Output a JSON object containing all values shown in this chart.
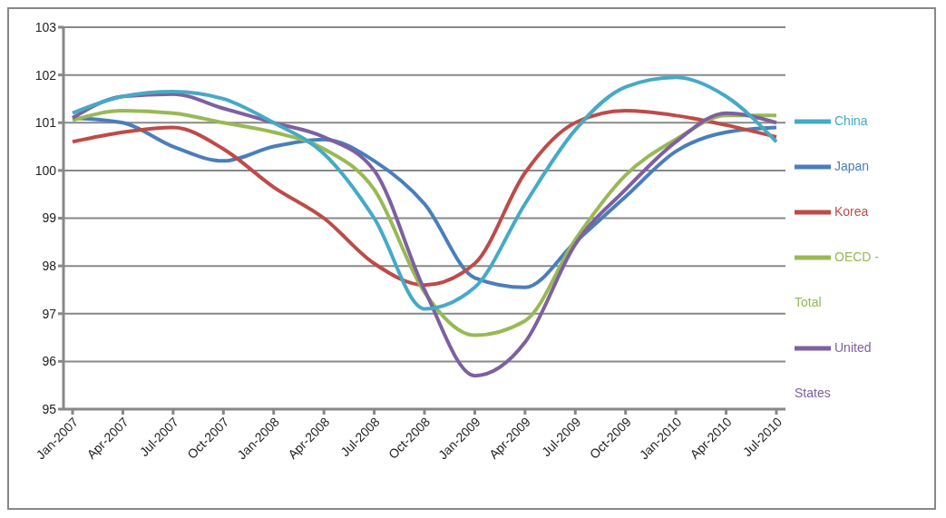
{
  "chart_data": {
    "type": "line",
    "categories": [
      "Jan-2007",
      "Apr-2007",
      "Jul-2007",
      "Oct-2007",
      "Jan-2008",
      "Apr-2008",
      "Jul-2008",
      "Oct-2008",
      "Jan-2009",
      "Apr-2009",
      "Jul-2009",
      "Oct-2009",
      "Jan-2010",
      "Apr-2010",
      "Jul-2010"
    ],
    "series": [
      {
        "name": "Japan",
        "color": "#4a7ebb",
        "values": [
          101.1,
          101.0,
          100.5,
          100.2,
          100.5,
          100.65,
          100.2,
          99.3,
          97.75,
          97.55,
          98.5,
          99.45,
          100.4,
          100.8,
          100.9
        ]
      },
      {
        "name": "Korea",
        "color": "#be4b48",
        "values": [
          100.6,
          100.8,
          100.9,
          100.45,
          99.65,
          99.0,
          98.05,
          97.6,
          98.05,
          99.95,
          101.0,
          101.25,
          101.15,
          100.95,
          100.7
        ]
      },
      {
        "name": "OECD - Total",
        "color": "#98b954",
        "values": [
          101.05,
          101.25,
          101.2,
          101.0,
          100.8,
          100.45,
          99.6,
          97.45,
          96.55,
          96.85,
          98.55,
          99.9,
          100.65,
          101.15,
          101.15
        ]
      },
      {
        "name": "United States",
        "color": "#7d60a0",
        "values": [
          101.1,
          101.55,
          101.6,
          101.3,
          101.0,
          100.7,
          100.0,
          97.5,
          95.7,
          96.4,
          98.45,
          99.6,
          100.6,
          101.2,
          101.0
        ]
      },
      {
        "name": "China",
        "color": "#46aac5",
        "values": [
          101.2,
          101.55,
          101.65,
          101.5,
          101.0,
          100.35,
          99.0,
          97.1,
          97.55,
          99.3,
          100.85,
          101.75,
          101.95,
          101.55,
          100.6
        ]
      }
    ],
    "ylim": [
      95,
      103
    ],
    "yticks": [
      95,
      96,
      97,
      98,
      99,
      100,
      101,
      102,
      103
    ],
    "grid": "y",
    "legend": "right",
    "marker": "none",
    "line_style": "solid"
  }
}
